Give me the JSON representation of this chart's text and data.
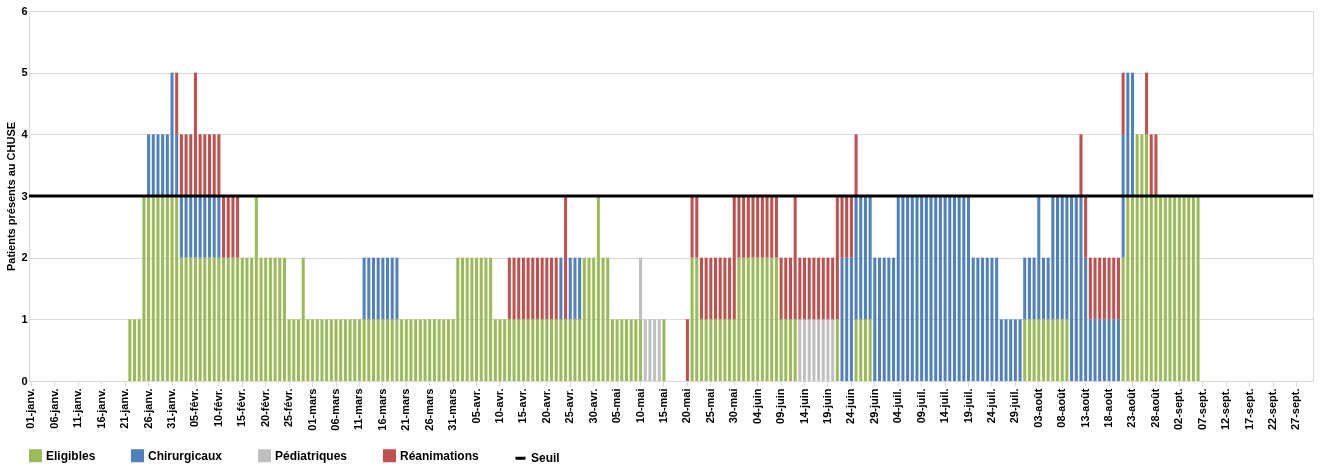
{
  "chart_data": {
    "type": "bar",
    "stacked": true,
    "ylabel": "Patients présents au CHUSE",
    "categories": [
      "01-janv.",
      null,
      null,
      null,
      null,
      "06-janv.",
      null,
      null,
      null,
      null,
      "11-janv.",
      null,
      null,
      null,
      null,
      "16-janv.",
      null,
      null,
      null,
      null,
      "21-janv.",
      null,
      null,
      null,
      null,
      "26-janv.",
      null,
      null,
      null,
      null,
      "31-janv.",
      null,
      null,
      null,
      null,
      "05-févr.",
      null,
      null,
      null,
      null,
      "10-févr.",
      null,
      null,
      null,
      null,
      "15-févr.",
      null,
      null,
      null,
      null,
      "20-févr.",
      null,
      null,
      null,
      null,
      "25-févr.",
      null,
      null,
      null,
      null,
      "01-mars",
      null,
      null,
      null,
      null,
      "06-mars",
      null,
      null,
      null,
      null,
      "11-mars",
      null,
      null,
      null,
      null,
      "16-mars",
      null,
      null,
      null,
      null,
      "21-mars",
      null,
      null,
      null,
      null,
      "26-mars",
      null,
      null,
      null,
      null,
      "31-mars",
      null,
      null,
      null,
      null,
      "05-avr.",
      null,
      null,
      null,
      null,
      "10-avr.",
      null,
      null,
      null,
      null,
      "15-avr.",
      null,
      null,
      null,
      null,
      "20-avr.",
      null,
      null,
      null,
      null,
      "25-avr.",
      null,
      null,
      null,
      null,
      "30-avr.",
      null,
      null,
      null,
      null,
      "05-mai",
      null,
      null,
      null,
      null,
      "10-mai",
      null,
      null,
      null,
      null,
      "15-mai",
      null,
      null,
      null,
      null,
      "20-mai",
      null,
      null,
      null,
      null,
      "25-mai",
      null,
      null,
      null,
      null,
      "30-mai",
      null,
      null,
      null,
      null,
      "04-juin",
      null,
      null,
      null,
      null,
      "09-juin",
      null,
      null,
      null,
      null,
      "14-juin",
      null,
      null,
      null,
      null,
      "19-juin",
      null,
      null,
      null,
      null,
      "24-juin",
      null,
      null,
      null,
      null,
      "29-juin",
      null,
      null,
      null,
      null,
      "04-juil.",
      null,
      null,
      null,
      null,
      "09-juil.",
      null,
      null,
      null,
      null,
      "14-juil.",
      null,
      null,
      null,
      null,
      "19-juil.",
      null,
      null,
      null,
      null,
      "24-juil.",
      null,
      null,
      null,
      null,
      "29-juil.",
      null,
      null,
      null,
      null,
      "03-août",
      null,
      null,
      null,
      null,
      "08-août",
      null,
      null,
      null,
      null,
      "13-août",
      null,
      null,
      null,
      null,
      "18-août",
      null,
      null,
      null,
      null,
      "23-août",
      null,
      null,
      null,
      null,
      "28-août",
      null,
      null,
      null,
      null,
      "02-sept.",
      null,
      null,
      null,
      null,
      "07-sept.",
      null,
      null,
      null,
      null,
      "12-sept.",
      null,
      null,
      null,
      null,
      "17-sept.",
      null,
      null,
      null,
      null,
      "22-sept.",
      null,
      null,
      null,
      null,
      "27-sept.",
      null,
      null,
      null
    ],
    "series": [
      {
        "name": "Eligibles",
        "color": "#9bbb59",
        "values": [
          0,
          0,
          0,
          0,
          0,
          0,
          0,
          0,
          0,
          0,
          0,
          0,
          0,
          0,
          0,
          0,
          0,
          0,
          0,
          0,
          0,
          1,
          1,
          1,
          3,
          3,
          3,
          3,
          3,
          3,
          3,
          3,
          2,
          2,
          2,
          2,
          2,
          2,
          2,
          2,
          2,
          2,
          2,
          2,
          2,
          2,
          2,
          2,
          3,
          2,
          2,
          2,
          2,
          2,
          2,
          1,
          1,
          1,
          2,
          1,
          1,
          1,
          1,
          1,
          1,
          1,
          1,
          1,
          1,
          1,
          1,
          1,
          1,
          1,
          1,
          1,
          1,
          1,
          1,
          1,
          1,
          1,
          1,
          1,
          1,
          1,
          1,
          1,
          1,
          1,
          1,
          2,
          2,
          2,
          2,
          2,
          2,
          2,
          2,
          1,
          1,
          1,
          1,
          1,
          1,
          1,
          1,
          1,
          1,
          1,
          1,
          1,
          1,
          1,
          1,
          1,
          1,
          1,
          2,
          2,
          2,
          3,
          2,
          2,
          1,
          1,
          1,
          1,
          1,
          1,
          1,
          0,
          0,
          0,
          0,
          1,
          0,
          0,
          0,
          0,
          0,
          2,
          2,
          1,
          1,
          1,
          1,
          1,
          1,
          1,
          1,
          2,
          2,
          2,
          2,
          2,
          2,
          2,
          2,
          2,
          1,
          1,
          1,
          1,
          0,
          0,
          0,
          0,
          0,
          0,
          0,
          0,
          1,
          0,
          0,
          0,
          1,
          1,
          1,
          1,
          0,
          0,
          0,
          0,
          0,
          0,
          0,
          0,
          0,
          0,
          0,
          0,
          0,
          0,
          0,
          0,
          0,
          0,
          0,
          0,
          0,
          0,
          0,
          0,
          0,
          0,
          0,
          0,
          0,
          0,
          0,
          0,
          1,
          1,
          1,
          1,
          1,
          1,
          1,
          1,
          1,
          1,
          0,
          0,
          0,
          0,
          0,
          0,
          0,
          0,
          0,
          0,
          0,
          2,
          3,
          3,
          4,
          4,
          4,
          3,
          3,
          3,
          3,
          3,
          3,
          3,
          3,
          3,
          3,
          3,
          0,
          0,
          0,
          0,
          0,
          0,
          0,
          0,
          0,
          0,
          0,
          0,
          0,
          0,
          0,
          0,
          0,
          0,
          0,
          0,
          0,
          0,
          0,
          0
        ]
      },
      {
        "name": "Chirurgicaux",
        "color": "#4f81bd",
        "values": [
          0,
          0,
          0,
          0,
          0,
          0,
          0,
          0,
          0,
          0,
          0,
          0,
          0,
          0,
          0,
          0,
          0,
          0,
          0,
          0,
          0,
          0,
          0,
          0,
          0,
          1,
          1,
          1,
          1,
          1,
          2,
          1,
          1,
          1,
          1,
          1,
          1,
          1,
          1,
          1,
          1,
          0,
          0,
          0,
          0,
          0,
          0,
          0,
          0,
          0,
          0,
          0,
          0,
          0,
          0,
          0,
          0,
          0,
          0,
          0,
          0,
          0,
          0,
          0,
          0,
          0,
          0,
          0,
          0,
          0,
          0,
          1,
          1,
          1,
          1,
          1,
          1,
          1,
          1,
          0,
          0,
          0,
          0,
          0,
          0,
          0,
          0,
          0,
          0,
          0,
          0,
          0,
          0,
          0,
          0,
          0,
          0,
          0,
          0,
          0,
          0,
          0,
          0,
          0,
          0,
          0,
          0,
          0,
          0,
          0,
          0,
          0,
          0,
          1,
          0,
          1,
          1,
          1,
          0,
          0,
          0,
          0,
          0,
          0,
          0,
          0,
          0,
          0,
          0,
          0,
          0,
          0,
          0,
          0,
          0,
          0,
          0,
          0,
          0,
          0,
          0,
          0,
          0,
          0,
          0,
          0,
          0,
          0,
          0,
          0,
          0,
          0,
          0,
          0,
          0,
          0,
          0,
          0,
          0,
          0,
          0,
          0,
          0,
          0,
          0,
          0,
          0,
          0,
          0,
          0,
          0,
          0,
          0,
          2,
          2,
          2,
          2,
          2,
          2,
          2,
          2,
          2,
          2,
          2,
          2,
          3,
          3,
          3,
          3,
          3,
          3,
          3,
          3,
          3,
          3,
          3,
          3,
          3,
          3,
          3,
          3,
          2,
          2,
          2,
          2,
          2,
          2,
          1,
          1,
          1,
          1,
          1,
          1,
          1,
          1,
          2,
          1,
          1,
          2,
          2,
          2,
          2,
          3,
          3,
          3,
          2,
          1,
          1,
          1,
          1,
          1,
          1,
          1,
          2,
          2,
          2,
          0,
          0,
          0,
          0,
          0,
          0,
          0,
          0,
          0,
          0,
          0,
          0,
          0,
          0,
          0,
          0,
          0,
          0,
          0,
          0,
          0,
          0,
          0,
          0,
          0,
          0,
          0,
          0,
          0,
          0,
          0,
          0,
          0,
          0,
          0,
          0,
          0,
          0
        ]
      },
      {
        "name": "Pédiatriques",
        "color": "#bfbfbf",
        "values": [
          0,
          0,
          0,
          0,
          0,
          0,
          0,
          0,
          0,
          0,
          0,
          0,
          0,
          0,
          0,
          0,
          0,
          0,
          0,
          0,
          0,
          0,
          0,
          0,
          0,
          0,
          0,
          0,
          0,
          0,
          0,
          0,
          0,
          0,
          0,
          0,
          0,
          0,
          0,
          0,
          0,
          0,
          0,
          0,
          0,
          0,
          0,
          0,
          0,
          0,
          0,
          0,
          0,
          0,
          0,
          0,
          0,
          0,
          0,
          0,
          0,
          0,
          0,
          0,
          0,
          0,
          0,
          0,
          0,
          0,
          0,
          0,
          0,
          0,
          0,
          0,
          0,
          0,
          0,
          0,
          0,
          0,
          0,
          0,
          0,
          0,
          0,
          0,
          0,
          0,
          0,
          0,
          0,
          0,
          0,
          0,
          0,
          0,
          0,
          0,
          0,
          0,
          0,
          0,
          0,
          0,
          0,
          0,
          0,
          0,
          0,
          0,
          0,
          0,
          0,
          0,
          0,
          0,
          0,
          0,
          0,
          0,
          0,
          0,
          0,
          0,
          0,
          0,
          0,
          0,
          1,
          1,
          1,
          1,
          1,
          0,
          0,
          0,
          0,
          0,
          0,
          0,
          0,
          0,
          0,
          0,
          0,
          0,
          0,
          0,
          0,
          0,
          0,
          0,
          0,
          0,
          0,
          0,
          0,
          0,
          0,
          0,
          0,
          0,
          1,
          1,
          1,
          1,
          1,
          1,
          1,
          1,
          0,
          0,
          0,
          0,
          0,
          0,
          0,
          0,
          0,
          0,
          0,
          0,
          0,
          0,
          0,
          0,
          0,
          0,
          0,
          0,
          0,
          0,
          0,
          0,
          0,
          0,
          0,
          0,
          0,
          0,
          0,
          0,
          0,
          0,
          0,
          0,
          0,
          0,
          0,
          0,
          0,
          0,
          0,
          0,
          0,
          0,
          0,
          0,
          0,
          0,
          0,
          0,
          0,
          0,
          0,
          0,
          0,
          0,
          0,
          0,
          0,
          0,
          0,
          0,
          0,
          0,
          0,
          0,
          0,
          0,
          0,
          0,
          0,
          0,
          0,
          0,
          0,
          0,
          0,
          0,
          0,
          0,
          0,
          0,
          0,
          0,
          0,
          0,
          0,
          0,
          0,
          0,
          0,
          0,
          0,
          0,
          0,
          0,
          0,
          0,
          0,
          0
        ]
      },
      {
        "name": "Réanimations",
        "color": "#c0504d",
        "values": [
          0,
          0,
          0,
          0,
          0,
          0,
          0,
          0,
          0,
          0,
          0,
          0,
          0,
          0,
          0,
          0,
          0,
          0,
          0,
          0,
          0,
          0,
          0,
          0,
          0,
          0,
          0,
          0,
          0,
          0,
          0,
          1,
          1,
          1,
          1,
          2,
          1,
          1,
          1,
          1,
          1,
          1,
          1,
          1,
          1,
          0,
          0,
          0,
          0,
          0,
          0,
          0,
          0,
          0,
          0,
          0,
          0,
          0,
          0,
          0,
          0,
          0,
          0,
          0,
          0,
          0,
          0,
          0,
          0,
          0,
          0,
          0,
          0,
          0,
          0,
          0,
          0,
          0,
          0,
          0,
          0,
          0,
          0,
          0,
          0,
          0,
          0,
          0,
          0,
          0,
          0,
          0,
          0,
          0,
          0,
          0,
          0,
          0,
          0,
          0,
          0,
          0,
          1,
          1,
          1,
          1,
          1,
          1,
          1,
          1,
          1,
          1,
          1,
          0,
          2,
          0,
          0,
          0,
          0,
          0,
          0,
          0,
          0,
          0,
          0,
          0,
          0,
          0,
          0,
          0,
          0,
          0,
          0,
          0,
          0,
          0,
          0,
          0,
          0,
          0,
          1,
          1,
          1,
          1,
          1,
          1,
          1,
          1,
          1,
          1,
          2,
          1,
          1,
          1,
          1,
          1,
          1,
          1,
          1,
          1,
          1,
          1,
          1,
          2,
          1,
          1,
          1,
          1,
          1,
          1,
          1,
          1,
          2,
          1,
          1,
          1,
          1,
          0,
          0,
          0,
          0,
          0,
          0,
          0,
          0,
          0,
          0,
          0,
          0,
          0,
          0,
          0,
          0,
          0,
          0,
          0,
          0,
          0,
          0,
          0,
          0,
          0,
          0,
          0,
          0,
          0,
          0,
          0,
          0,
          0,
          0,
          0,
          0,
          0,
          0,
          0,
          0,
          0,
          0,
          0,
          0,
          0,
          0,
          0,
          1,
          1,
          1,
          1,
          1,
          1,
          1,
          1,
          1,
          1,
          0,
          0,
          0,
          0,
          1,
          1,
          1,
          0,
          0,
          0,
          0,
          0,
          0,
          0,
          0,
          0,
          0,
          0,
          0,
          0,
          0,
          0,
          0,
          0,
          0,
          0,
          0,
          0,
          0,
          0,
          0,
          0,
          0,
          0,
          0,
          0,
          0,
          0,
          0,
          0
        ]
      }
    ],
    "ref_lines": [
      {
        "axis": "y",
        "value": 3,
        "label": "Seuil",
        "color": "#000000"
      }
    ],
    "ylim": [
      0,
      6
    ],
    "yticks": [
      0,
      1,
      2,
      3,
      4,
      5,
      6
    ],
    "grid": "y",
    "legend": "bottom"
  }
}
